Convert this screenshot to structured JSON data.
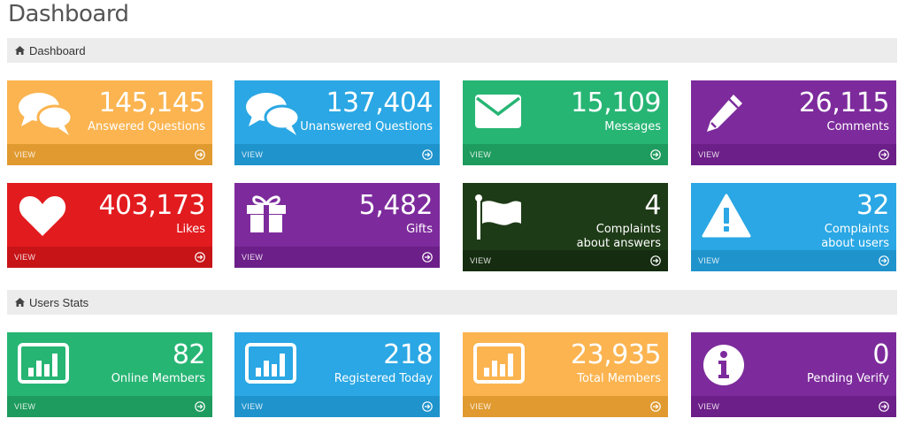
{
  "page": {
    "title": "Dashboard"
  },
  "sections": {
    "dashboard": {
      "label": "Dashboard"
    },
    "users_stats": {
      "label": "Users Stats"
    }
  },
  "colors": {
    "orange": "#fbb450",
    "orange_footer": "#e09a30",
    "blue": "#2aa7e4",
    "blue_footer": "#1f93cc",
    "green": "#27b574",
    "green_footer": "#1e9b5e",
    "purple": "#7d2b9c",
    "purple_footer": "#6c1f88",
    "red": "#e21b1f",
    "red_footer": "#c61417",
    "darkgreen": "#1e3b17",
    "darkgreen_footer": "#152c10",
    "lightblue": "#2aa7e4",
    "lightblue_footer": "#1f93cc"
  },
  "cards": {
    "answered": {
      "value": "145,145",
      "label": "Answered Questions",
      "view": "VIEW",
      "icon": "comments-icon"
    },
    "unanswered": {
      "value": "137,404",
      "label": "Unanswered Questions",
      "view": "VIEW",
      "icon": "comments-icon"
    },
    "messages": {
      "value": "15,109",
      "label": "Messages",
      "view": "VIEW",
      "icon": "envelope-icon"
    },
    "comments": {
      "value": "26,115",
      "label": "Comments",
      "view": "VIEW",
      "icon": "pencil-icon"
    },
    "likes": {
      "value": "403,173",
      "label": "Likes",
      "view": "VIEW",
      "icon": "heart-icon"
    },
    "gifts": {
      "value": "5,482",
      "label": "Gifts",
      "view": "VIEW",
      "icon": "gift-icon"
    },
    "complaints_answers": {
      "value": "4",
      "label_line1": "Complaints",
      "label_line2": "about answers",
      "view": "VIEW",
      "icon": "flag-icon"
    },
    "complaints_users": {
      "value": "32",
      "label_line1": "Complaints",
      "label_line2": "about users",
      "view": "VIEW",
      "icon": "warning-icon"
    },
    "online": {
      "value": "82",
      "label": "Online Members",
      "view": "VIEW",
      "icon": "bar-chart-icon"
    },
    "registered_today": {
      "value": "218",
      "label": "Registered Today",
      "view": "VIEW",
      "icon": "bar-chart-icon"
    },
    "total_members": {
      "value": "23,935",
      "label": "Total Members",
      "view": "VIEW",
      "icon": "bar-chart-icon"
    },
    "pending_verify": {
      "value": "0",
      "label": "Pending Verify",
      "view": "VIEW",
      "icon": "info-icon"
    }
  }
}
